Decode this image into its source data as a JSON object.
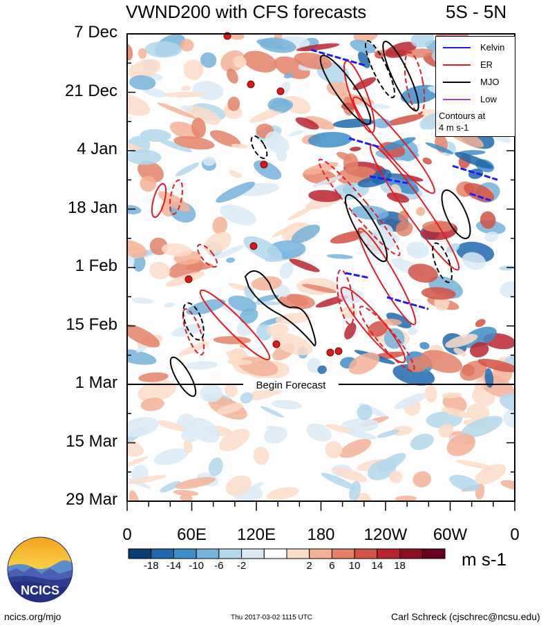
{
  "header": {
    "title": "VWND200 with CFS forecasts",
    "region": "5S - 5N"
  },
  "chart_data": {
    "type": "heatmap",
    "title": "VWND200 with CFS forecasts",
    "subtitle": "5S - 5N",
    "yticks": [
      "7 Dec",
      "21 Dec",
      "4 Jan",
      "18 Jan",
      "1 Feb",
      "15 Feb",
      "1 Mar",
      "15 Mar",
      "29 Mar"
    ],
    "xticks": [
      "0",
      "60E",
      "120E",
      "180",
      "120W",
      "60W",
      "0"
    ],
    "xlim": [
      0,
      360
    ],
    "ylim_days": [
      0,
      112
    ],
    "forecast_start": {
      "label": "Begin Forecast",
      "date": "1 Mar"
    },
    "colorbar": {
      "unit": "m s-1",
      "labels": [
        "-18",
        "-14",
        "-10",
        "-6",
        "-2",
        "2",
        "6",
        "10",
        "14",
        "18"
      ],
      "colors": [
        "#0a3d6e",
        "#1f68ad",
        "#3d8dc8",
        "#76b3dc",
        "#b3d7ec",
        "#dbeaf4",
        "#ffffff",
        "#fbdcc8",
        "#f4b196",
        "#e48268",
        "#d25245",
        "#b82530",
        "#8e0d22",
        "#67001f"
      ]
    },
    "legend": {
      "items": [
        {
          "name": "Kelvin",
          "color": "#1a1aff"
        },
        {
          "name": "ER",
          "color": "#e8181e"
        },
        {
          "name": "MJO",
          "color": "#000000"
        },
        {
          "name": "Low",
          "color": "#a040d0"
        }
      ],
      "note": [
        "Contours at",
        "4 m s-1"
      ],
      "position": "top-right"
    }
  },
  "footer": {
    "site": "ncics.org/mjo",
    "timestamp": "Thu 2017-03-02 1115 UTC",
    "author": "Carl Schreck (cjschrec@ncsu.edu)",
    "logo_text": "NCICS"
  }
}
